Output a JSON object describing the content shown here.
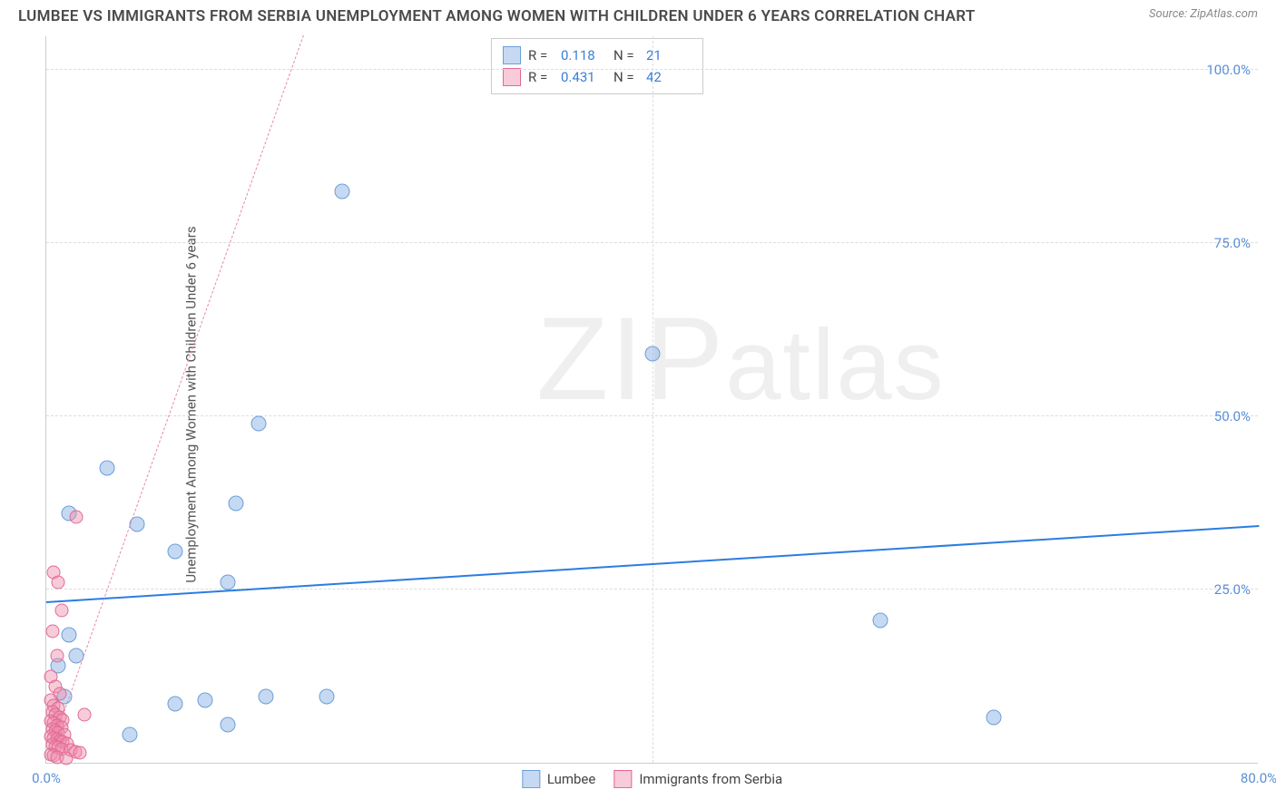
{
  "title": "LUMBEE VS IMMIGRANTS FROM SERBIA UNEMPLOYMENT AMONG WOMEN WITH CHILDREN UNDER 6 YEARS CORRELATION CHART",
  "source_label": "Source: ZipAtlas.com",
  "y_axis_label": "Unemployment Among Women with Children Under 6 years",
  "watermark_text": "ZIPatlas",
  "chart": {
    "type": "scatter",
    "background_color": "#ffffff",
    "grid_color": "#dddddd",
    "axis_color": "#cccccc",
    "tick_color": "#5a8fd6",
    "xlim": [
      0,
      80
    ],
    "ylim": [
      0,
      105
    ],
    "xticks": [
      {
        "v": 0,
        "label": "0.0%"
      },
      {
        "v": 80,
        "label": "80.0%"
      }
    ],
    "yticks": [
      {
        "v": 25,
        "label": "25.0%"
      },
      {
        "v": 50,
        "label": "50.0%"
      },
      {
        "v": 75,
        "label": "75.0%"
      },
      {
        "v": 100,
        "label": "100.0%"
      }
    ],
    "vgrid_at": [
      40
    ],
    "series": [
      {
        "name": "Lumbee",
        "fill": "rgba(128,170,226,0.45)",
        "stroke": "#6b9fd8",
        "marker_size": 17,
        "R": "0.118",
        "N": "21",
        "trend": {
          "color": "#2b7de0",
          "dashed": false,
          "x1": 0,
          "y1": 23,
          "x2": 80,
          "y2": 34
        },
        "points": [
          {
            "x": 19.5,
            "y": 82.5
          },
          {
            "x": 40.0,
            "y": 59.0
          },
          {
            "x": 14.0,
            "y": 49.0
          },
          {
            "x": 4.0,
            "y": 42.5
          },
          {
            "x": 12.5,
            "y": 37.5
          },
          {
            "x": 6.0,
            "y": 34.5
          },
          {
            "x": 1.5,
            "y": 36.0
          },
          {
            "x": 8.5,
            "y": 30.5
          },
          {
            "x": 12.0,
            "y": 26.0
          },
          {
            "x": 55.0,
            "y": 20.5
          },
          {
            "x": 1.5,
            "y": 18.5
          },
          {
            "x": 2.0,
            "y": 15.5
          },
          {
            "x": 0.8,
            "y": 14.0
          },
          {
            "x": 8.5,
            "y": 8.5
          },
          {
            "x": 10.5,
            "y": 9.0
          },
          {
            "x": 14.5,
            "y": 9.5
          },
          {
            "x": 18.5,
            "y": 9.5
          },
          {
            "x": 12.0,
            "y": 5.5
          },
          {
            "x": 5.5,
            "y": 4.0
          },
          {
            "x": 62.5,
            "y": 6.5
          },
          {
            "x": 1.2,
            "y": 9.5
          }
        ]
      },
      {
        "name": "Immigrants from Serbia",
        "fill": "rgba(240,140,170,0.45)",
        "stroke": "#e06a94",
        "marker_size": 15,
        "R": "0.431",
        "N": "42",
        "trend": {
          "color": "#e88aa8",
          "dashed": true,
          "x1": 0.5,
          "y1": 3,
          "x2": 17,
          "y2": 105
        },
        "points": [
          {
            "x": 2.0,
            "y": 35.5
          },
          {
            "x": 0.5,
            "y": 27.5
          },
          {
            "x": 0.8,
            "y": 26.0
          },
          {
            "x": 1.0,
            "y": 22.0
          },
          {
            "x": 0.4,
            "y": 19.0
          },
          {
            "x": 0.7,
            "y": 15.5
          },
          {
            "x": 0.3,
            "y": 12.5
          },
          {
            "x": 0.6,
            "y": 11.0
          },
          {
            "x": 0.9,
            "y": 10.0
          },
          {
            "x": 0.3,
            "y": 9.0
          },
          {
            "x": 0.5,
            "y": 8.2
          },
          {
            "x": 0.8,
            "y": 7.8
          },
          {
            "x": 0.4,
            "y": 7.3
          },
          {
            "x": 0.6,
            "y": 6.9
          },
          {
            "x": 0.9,
            "y": 6.5
          },
          {
            "x": 1.1,
            "y": 6.2
          },
          {
            "x": 0.3,
            "y": 6.0
          },
          {
            "x": 0.5,
            "y": 5.7
          },
          {
            "x": 0.7,
            "y": 5.4
          },
          {
            "x": 1.0,
            "y": 5.1
          },
          {
            "x": 0.4,
            "y": 4.9
          },
          {
            "x": 0.6,
            "y": 4.6
          },
          {
            "x": 0.8,
            "y": 4.3
          },
          {
            "x": 1.2,
            "y": 4.1
          },
          {
            "x": 0.3,
            "y": 3.8
          },
          {
            "x": 0.5,
            "y": 3.6
          },
          {
            "x": 0.7,
            "y": 3.4
          },
          {
            "x": 0.9,
            "y": 3.2
          },
          {
            "x": 1.1,
            "y": 3.0
          },
          {
            "x": 1.4,
            "y": 2.8
          },
          {
            "x": 0.4,
            "y": 2.6
          },
          {
            "x": 0.6,
            "y": 2.4
          },
          {
            "x": 0.8,
            "y": 2.2
          },
          {
            "x": 1.0,
            "y": 2.0
          },
          {
            "x": 1.6,
            "y": 1.8
          },
          {
            "x": 1.9,
            "y": 1.6
          },
          {
            "x": 2.2,
            "y": 1.4
          },
          {
            "x": 0.3,
            "y": 1.2
          },
          {
            "x": 0.5,
            "y": 1.0
          },
          {
            "x": 0.7,
            "y": 0.8
          },
          {
            "x": 1.3,
            "y": 0.6
          },
          {
            "x": 2.5,
            "y": 7.0
          }
        ]
      }
    ]
  },
  "statbox": {
    "R_label": "R  =",
    "N_label": "N  ="
  },
  "legend_bottom": {
    "items": [
      {
        "label": "Lumbee"
      },
      {
        "label": "Immigrants from Serbia"
      }
    ]
  }
}
